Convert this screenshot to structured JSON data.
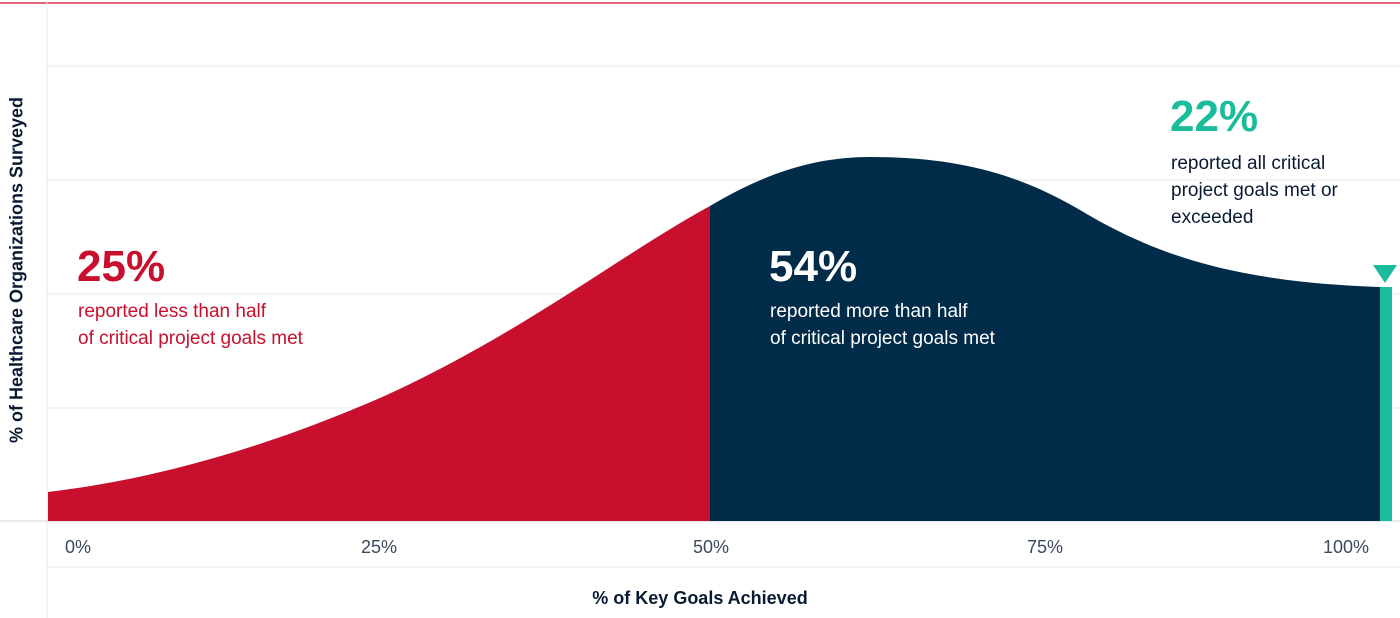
{
  "chart_data": {
    "type": "area",
    "title": "",
    "xlabel": "% of Key Goals Achieved",
    "ylabel": "% of Healthcare Organizations Surveyed",
    "x_ticks": [
      "0%",
      "25%",
      "50%",
      "75%",
      "100%"
    ],
    "xlim": [
      0,
      100
    ],
    "grid": true,
    "segments": [
      {
        "range": "0-50%",
        "value": "25%",
        "label_line1": "reported less than half",
        "label_line2": "of critical project goals met",
        "color": "#c8102e"
      },
      {
        "range": "50-100%",
        "value": "54%",
        "label_line1": "reported more than half",
        "label_line2": "of critical project goals met",
        "color": "#002b49"
      },
      {
        "range": "100%",
        "value": "22%",
        "label_line1": "reported all critical",
        "label_line2": "project goals met or",
        "label_line3": "exceeded",
        "color": "#1bbc9b"
      }
    ]
  },
  "colors": {
    "red": "#c8102e",
    "navy": "#002b49",
    "teal": "#1bbc9b",
    "top_rule": "#e8637a",
    "grid": "#e6e9ee"
  }
}
